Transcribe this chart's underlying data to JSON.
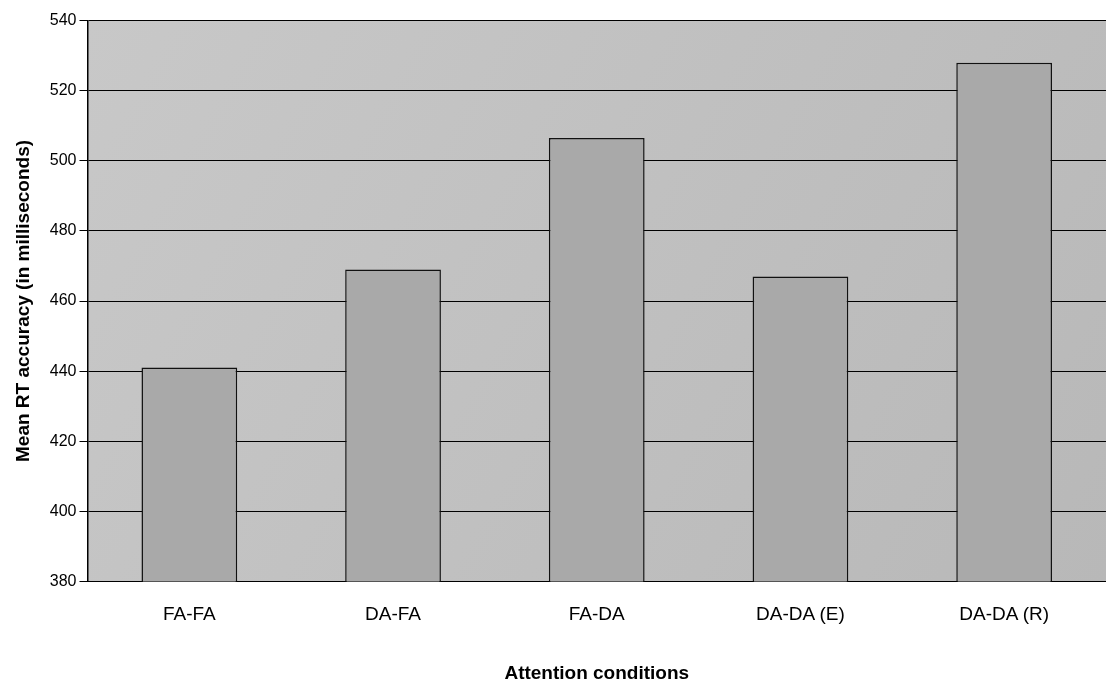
{
  "chart_data": {
    "type": "bar",
    "xlabel": "Attention conditions",
    "ylabel": "Mean RT accuracy (in milliseconds)",
    "categories": [
      "FA-FA",
      "DA-FA",
      "FA-DA",
      "DA-DA (E)",
      "DA-DA (R)"
    ],
    "values": [
      441,
      469,
      506.5,
      467,
      528
    ],
    "color": "#a9a9a9",
    "ylim": [
      380,
      540
    ],
    "yticks": [
      380,
      400,
      420,
      440,
      460,
      480,
      500,
      520,
      540
    ],
    "grid": "y",
    "legend": false
  }
}
